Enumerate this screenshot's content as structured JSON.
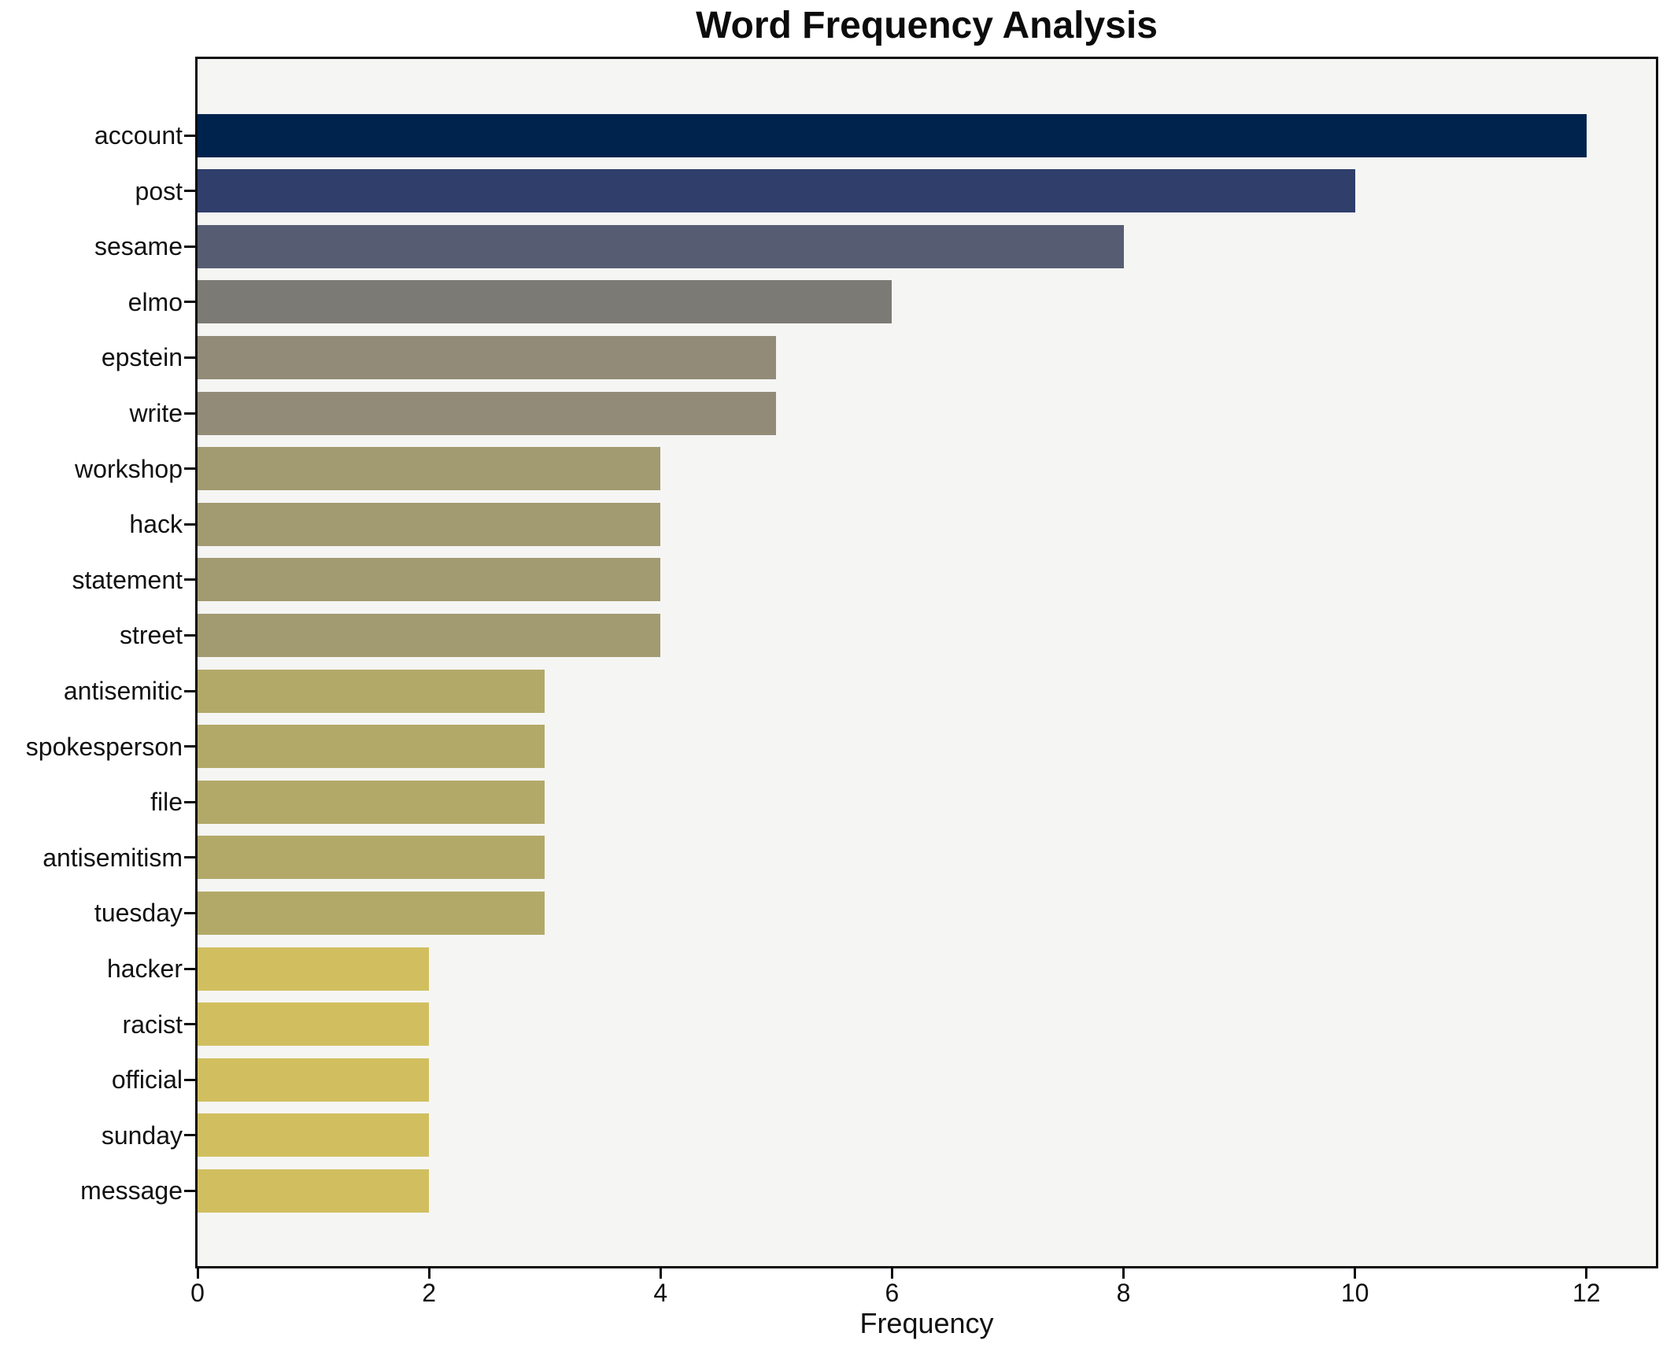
{
  "chart_data": {
    "type": "bar",
    "orientation": "horizontal",
    "title": "Word Frequency Analysis",
    "xlabel": "Frequency",
    "ylabel": "",
    "categories": [
      "account",
      "post",
      "sesame",
      "elmo",
      "epstein",
      "write",
      "workshop",
      "hack",
      "statement",
      "street",
      "antisemitic",
      "spokesperson",
      "file",
      "antisemitism",
      "tuesday",
      "hacker",
      "racist",
      "official",
      "sunday",
      "message"
    ],
    "values": [
      12,
      10,
      8,
      6,
      5,
      5,
      4,
      4,
      4,
      4,
      3,
      3,
      3,
      3,
      3,
      2,
      2,
      2,
      2,
      2
    ],
    "bar_colors": [
      "#00234d",
      "#2f3e6b",
      "#565d72",
      "#7b7a74",
      "#928b77",
      "#928b77",
      "#a29a71",
      "#a29a71",
      "#a29a71",
      "#a29a71",
      "#b2a969",
      "#b2a969",
      "#b2a969",
      "#b2a969",
      "#b2a969",
      "#d1bf5f",
      "#d1bf5f",
      "#d1bf5f",
      "#d1bf5f",
      "#d1bf5f"
    ],
    "x_ticks": [
      0,
      2,
      4,
      6,
      8,
      10,
      12
    ],
    "xlim": [
      0,
      12.6
    ],
    "grid": false,
    "legend": null,
    "plot_background": "#f5f5f4",
    "figure_background": "#ffffff",
    "spine_color": "#0b0b0b",
    "text_color": "#111111"
  }
}
